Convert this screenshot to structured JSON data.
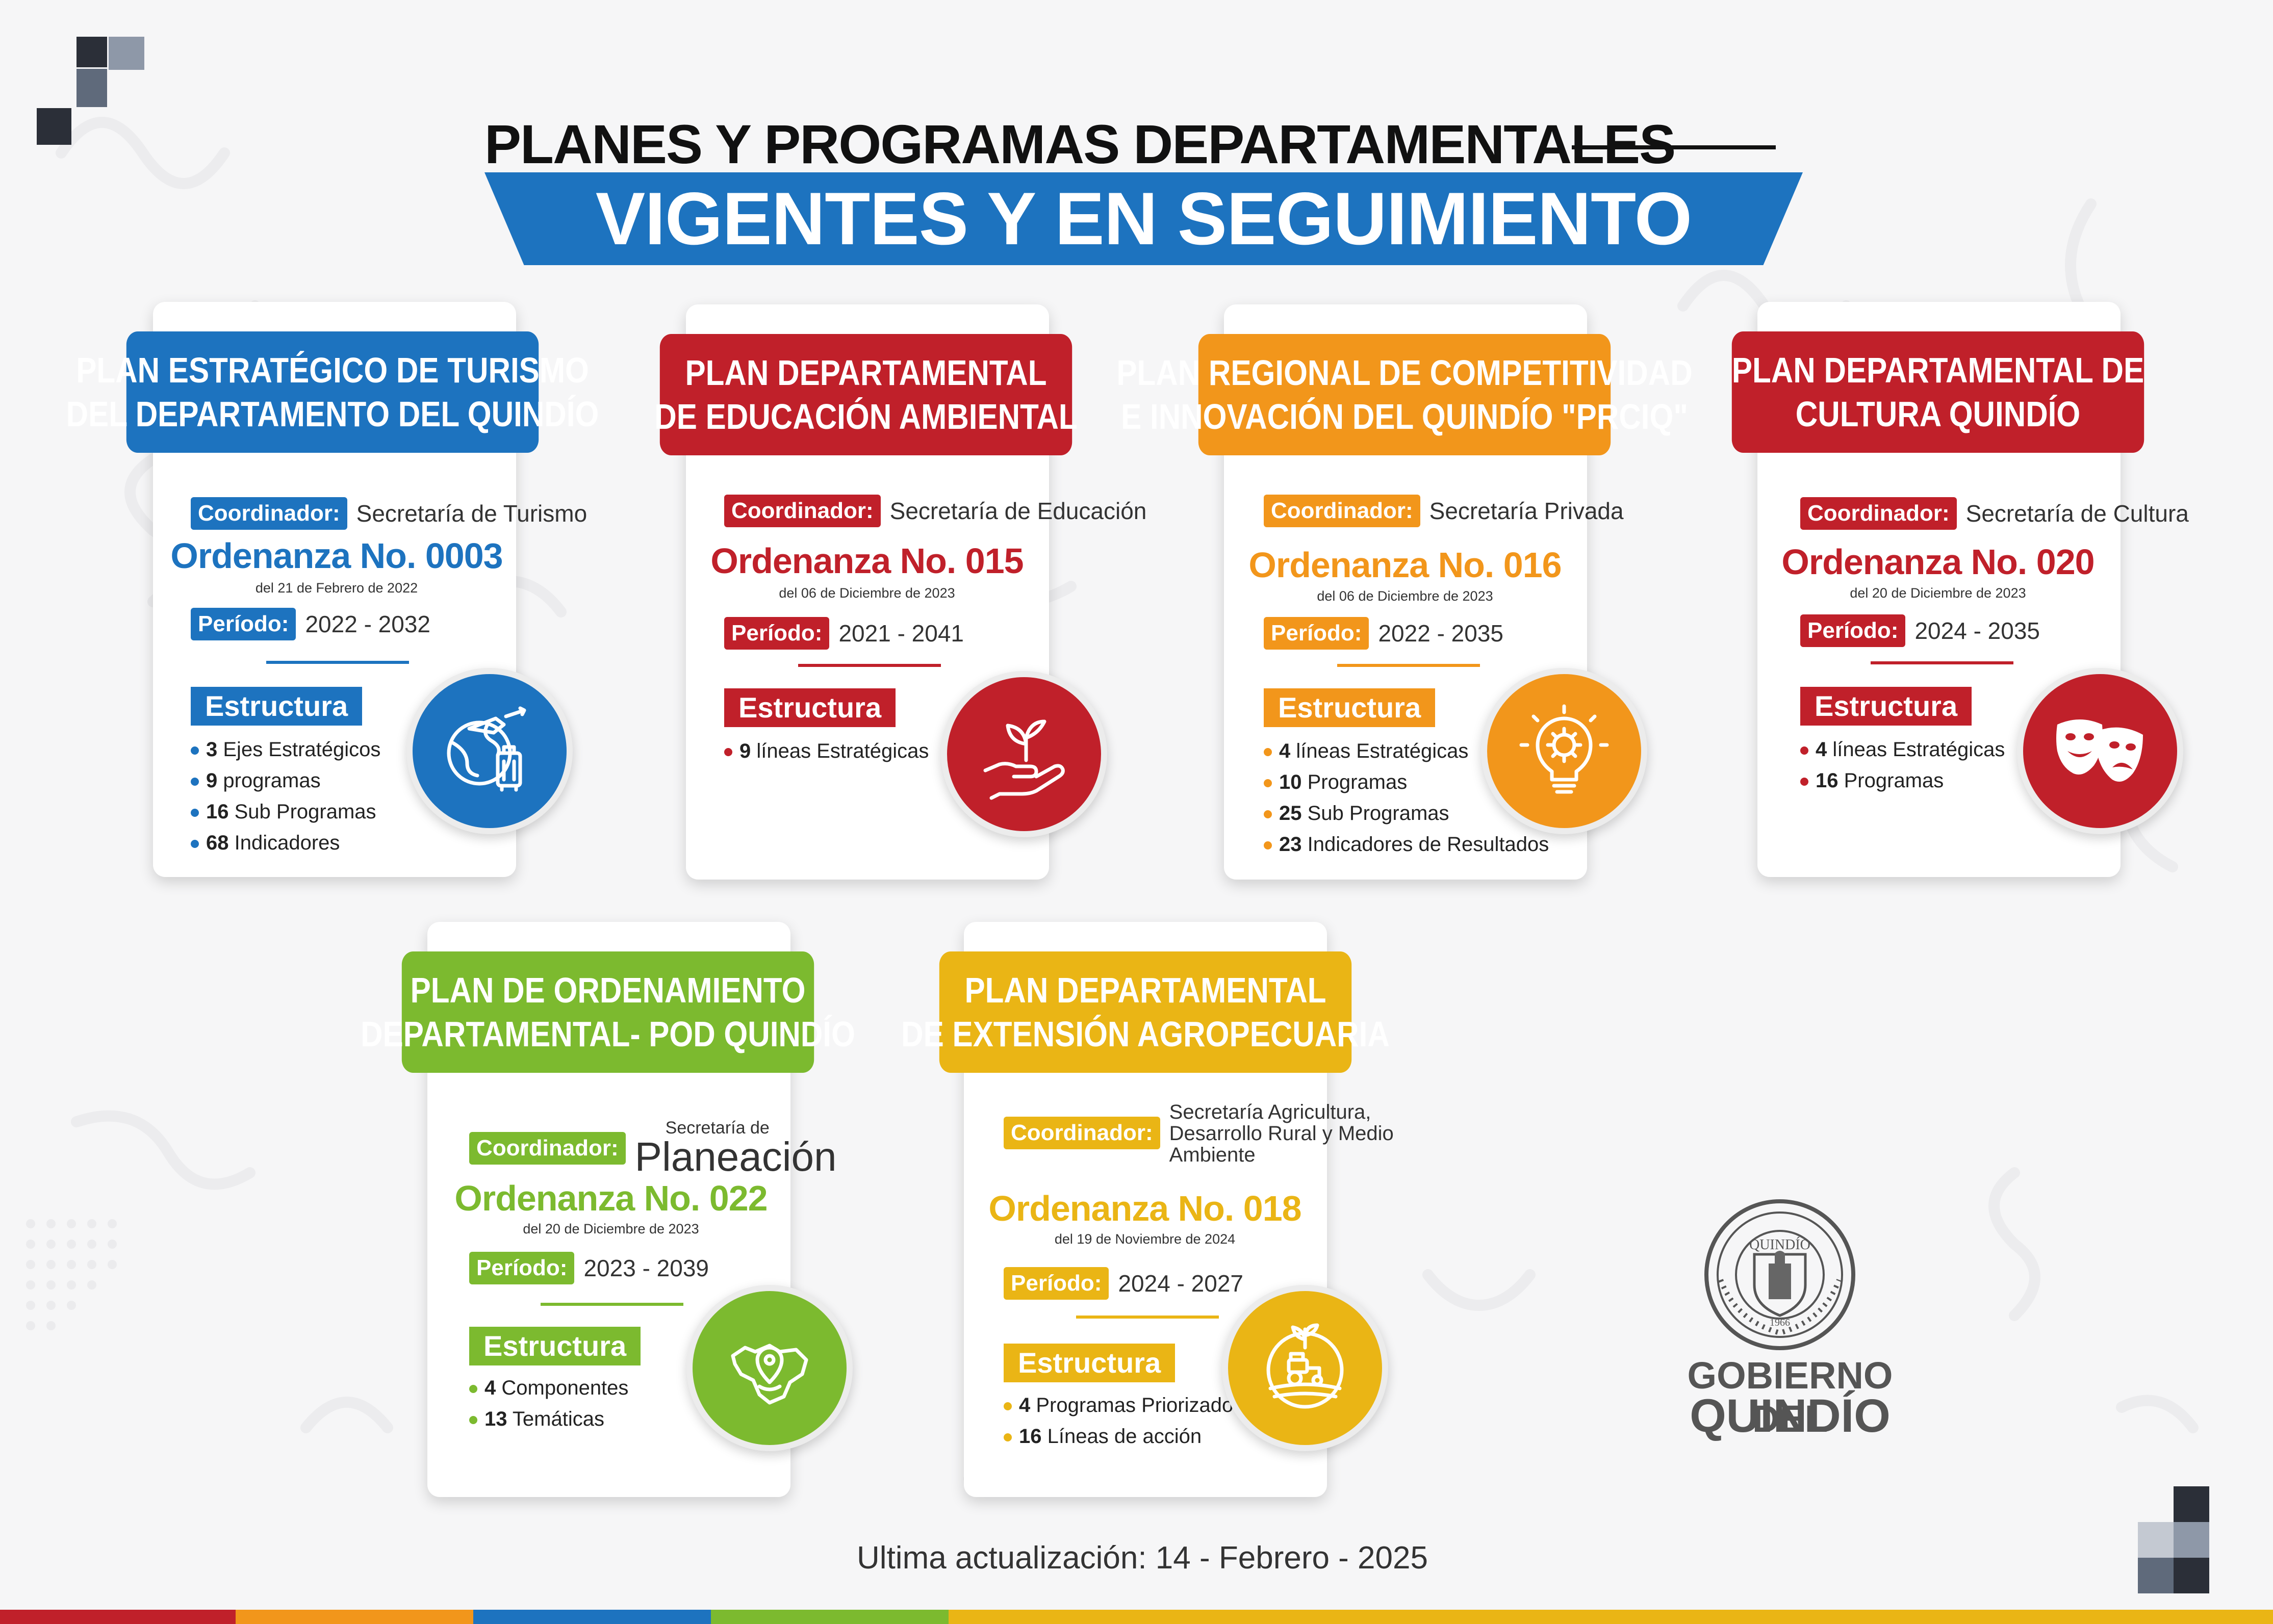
{
  "title": {
    "line1": "PLANES Y PROGRAMAS DEPARTAMENTALES",
    "line2": "VIGENTES Y EN SEGUIMIENTO"
  },
  "colors": {
    "blue": "#1d73bf",
    "red": "#c0202a",
    "orange": "#f2961b",
    "green": "#7cba2f",
    "yellow": "#eab515"
  },
  "cards": [
    {
      "title": [
        "PLAN ESTRATÉGICO DE TURISMO",
        "DEL DEPARTAMENTO DEL QUINDÍO"
      ],
      "coordinador_label": "Coordinador:",
      "coordinador": "Secretaría de Turismo",
      "ordenanza": "Ordenanza No. 0003",
      "fecha": "del 21 de Febrero de 2022",
      "periodo_label": "Período:",
      "periodo": "2022 - 2032",
      "estructura_label": "Estructura",
      "items": [
        {
          "n": "3",
          "t": "Ejes Estratégicos"
        },
        {
          "n": "9",
          "t": "programas"
        },
        {
          "n": "16",
          "t": "Sub Programas"
        },
        {
          "n": "68",
          "t": "Indicadores"
        }
      ],
      "icon": "tourism-globe-plane-luggage-icon"
    },
    {
      "title": [
        "PLAN DEPARTAMENTAL",
        "DE EDUCACIÓN AMBIENTAL"
      ],
      "coordinador_label": "Coordinador:",
      "coordinador": "Secretaría de Educación",
      "ordenanza": "Ordenanza No. 015",
      "fecha": "del 06 de Diciembre de 2023",
      "periodo_label": "Período:",
      "periodo": "2021 - 2041",
      "estructura_label": "Estructura",
      "items": [
        {
          "n": "9",
          "t": "líneas Estratégicas"
        }
      ],
      "icon": "hand-plant-sprout-icon"
    },
    {
      "title": [
        "PLAN REGIONAL DE COMPETITIVIDAD",
        "E INNOVACIÓN DEL QUINDÍO \"PRCIQ\""
      ],
      "coordinador_label": "Coordinador:",
      "coordinador": "Secretaría Privada",
      "ordenanza": "Ordenanza No. 016",
      "fecha": "del 06 de Diciembre de 2023",
      "periodo_label": "Período:",
      "periodo": "2022 - 2035",
      "estructura_label": "Estructura",
      "items": [
        {
          "n": "4",
          "t": "líneas Estratégicas"
        },
        {
          "n": "10",
          "t": "Programas"
        },
        {
          "n": "25",
          "t": "Sub Programas"
        },
        {
          "n": "23",
          "t": "Indicadores de Resultados"
        }
      ],
      "icon": "lightbulb-gear-icon"
    },
    {
      "title": [
        "PLAN DEPARTAMENTAL DE",
        "CULTURA QUINDÍO"
      ],
      "coordinador_label": "Coordinador:",
      "coordinador": "Secretaría de Cultura",
      "ordenanza": "Ordenanza No. 020",
      "fecha": "del 20 de Diciembre de 2023",
      "periodo_label": "Período:",
      "periodo": "2024 - 2035",
      "estructura_label": "Estructura",
      "items": [
        {
          "n": "4",
          "t": "líneas Estratégicas"
        },
        {
          "n": "16",
          "t": "Programas"
        }
      ],
      "icon": "theater-masks-icon"
    },
    {
      "title": [
        "PLAN DE ORDENAMIENTO",
        "DEPARTAMENTAL- POD QUINDÍO"
      ],
      "coordinador_label": "Coordinador:",
      "coordinador_small": "Secretaría de",
      "coordinador": "Planeación",
      "ordenanza": "Ordenanza No. 022",
      "fecha": "del 20 de Diciembre de 2023",
      "periodo_label": "Período:",
      "periodo": "2023 - 2039",
      "estructura_label": "Estructura",
      "items": [
        {
          "n": "4",
          "t": "Componentes"
        },
        {
          "n": "13",
          "t": "Temáticas"
        }
      ],
      "icon": "map-location-pin-icon"
    },
    {
      "title": [
        "PLAN DEPARTAMENTAL",
        "DE EXTENSIÓN AGROPECUARIA"
      ],
      "coordinador_label": "Coordinador:",
      "coordinador_lines": [
        "Secretaría Agricultura,",
        "Desarrollo Rural y Medio",
        "Ambiente"
      ],
      "ordenanza": "Ordenanza No. 018",
      "fecha": "del 19 de Noviembre de 2024",
      "periodo_label": "Período:",
      "periodo": "2024 - 2027",
      "estructura_label": "Estructura",
      "items": [
        {
          "n": "4",
          "t": "Programas Priorizados"
        },
        {
          "n": "16",
          "t": "Líneas de acción"
        }
      ],
      "icon": "tractor-field-icon"
    }
  ],
  "logo": {
    "seal_text": "QUINDÍO",
    "seal_year": "1966",
    "name1": "GOBIERNO DEL",
    "name2": "QUINDÍO"
  },
  "footer": "Ultima actualización:  14 - Febrero - 2025"
}
